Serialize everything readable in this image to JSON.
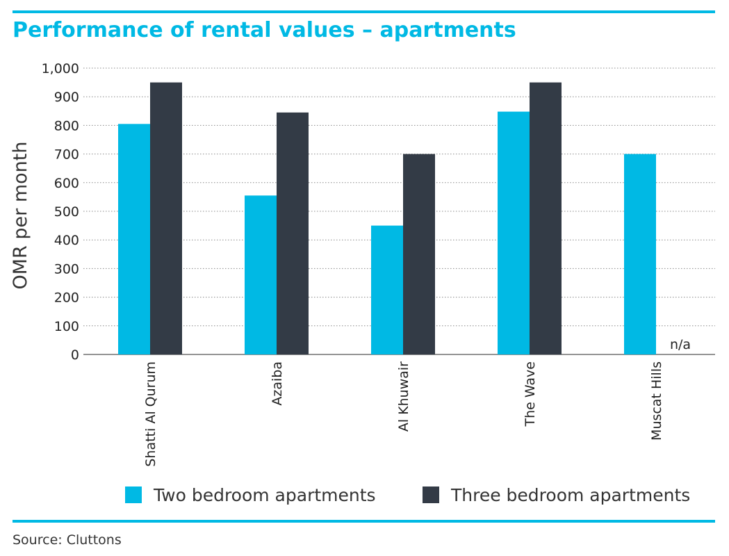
{
  "title": "Performance of rental values – apartments",
  "source": "Source: Cluttons",
  "colors": {
    "accent": "#00B9E4",
    "two_bedroom": "#00B9E4",
    "three_bedroom": "#333B46",
    "gridline": "#888888"
  },
  "chart_data": {
    "type": "bar",
    "title": "Performance of rental values – apartments",
    "ylabel": "OMR per month",
    "xlabel": "",
    "ylim": [
      0,
      1000
    ],
    "yticks": [
      "0",
      "100",
      "200",
      "300",
      "400",
      "500",
      "600",
      "700",
      "800",
      "900",
      "1,000"
    ],
    "grid": true,
    "legend_position": "bottom",
    "categories": [
      "Shatti Al Qurum",
      "Azaiba",
      "Al Khuwair",
      "The Wave",
      "Muscat Hills"
    ],
    "series": [
      {
        "name": "Two bedroom apartments",
        "values": [
          805,
          555,
          450,
          848,
          700
        ]
      },
      {
        "name": "Three bedroom apartments",
        "values": [
          950,
          845,
          700,
          950,
          null
        ]
      }
    ],
    "annotations": [
      {
        "category": "Muscat Hills",
        "series": "Three bedroom apartments",
        "text": "n/a"
      }
    ]
  }
}
